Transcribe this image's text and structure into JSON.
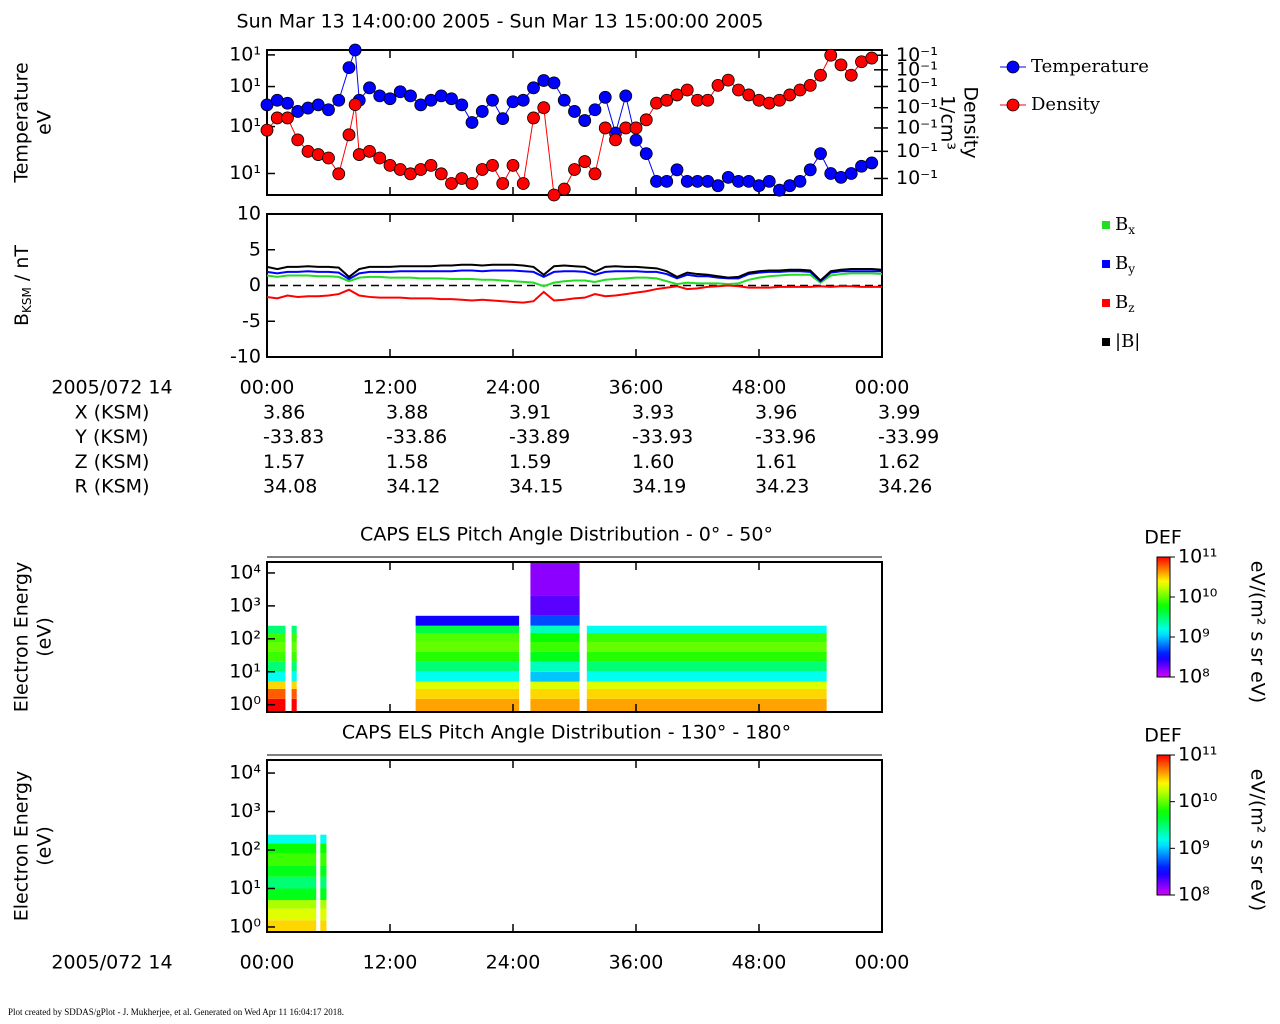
{
  "title": "Sun Mar 13 14:00:00 2005 - Sun Mar 13 15:00:00 2005",
  "footer": "Plot created by SDDAS/gPlot - J. Mukherjee, et al.  Generated on Wed Apr 11 16:04:17 2018.",
  "ephemeris": {
    "label": "2005/072 14",
    "rows": [
      {
        "name": "X (KSM)",
        "values": [
          "3.86",
          "3.88",
          "3.91",
          "3.93",
          "3.96",
          "3.99"
        ]
      },
      {
        "name": "Y (KSM)",
        "values": [
          "-33.83",
          "-33.86",
          "-33.89",
          "-33.93",
          "-33.96",
          "-33.99"
        ]
      },
      {
        "name": "Z (KSM)",
        "values": [
          "1.57",
          "1.58",
          "1.59",
          "1.60",
          "1.61",
          "1.62"
        ]
      },
      {
        "name": "R (KSM)",
        "values": [
          "34.08",
          "34.12",
          "34.15",
          "34.19",
          "34.23",
          "34.26"
        ]
      }
    ]
  },
  "chart_data": [
    {
      "type": "line",
      "markers": true,
      "legend": "right",
      "ylabel": [
        "Temperature",
        "eV"
      ],
      "y2label": [
        "Density",
        "1/cm³"
      ],
      "yscale": "log",
      "y2scale": "log",
      "xlim": [
        0,
        60
      ],
      "xticks": [
        0,
        12,
        24,
        36,
        48,
        60
      ],
      "ylim": [
        16,
        100
      ],
      "yticks": [
        {
          "value": 94,
          "label": "10¹"
        },
        {
          "value": 63,
          "label": "10¹"
        },
        {
          "value": 38,
          "label": "10¹"
        },
        {
          "value": 21,
          "label": "10¹"
        }
      ],
      "y2lim": [
        0.1,
        1
      ],
      "y2ticks": [
        {
          "value": 0.92,
          "label": "10⁻¹"
        },
        {
          "value": 0.73,
          "label": "10⁻¹"
        },
        {
          "value": 0.56,
          "label": "10⁻¹"
        },
        {
          "value": 0.4,
          "label": "10⁻¹"
        },
        {
          "value": 0.29,
          "label": "10⁻¹"
        },
        {
          "value": 0.2,
          "label": "10⁻¹"
        },
        {
          "value": 0.13,
          "label": "10⁻¹"
        }
      ],
      "x": [
        0,
        1,
        2,
        3,
        4,
        5,
        6,
        7,
        8,
        8.6,
        9,
        10,
        11,
        12,
        13,
        14,
        15,
        16,
        17,
        18,
        19,
        20,
        21,
        22,
        23,
        24,
        25,
        26,
        27,
        28,
        29,
        30,
        31,
        32,
        33,
        34,
        35,
        36,
        37,
        38,
        39,
        40,
        41,
        42,
        43,
        44,
        45,
        46,
        47,
        48,
        49,
        50,
        51,
        52,
        53,
        54,
        55,
        56,
        57,
        58,
        59
      ],
      "series": [
        {
          "name": "Temperature",
          "color": "#0000ff",
          "values": [
            50,
            53,
            51,
            46,
            48,
            50,
            47,
            53,
            80,
            100,
            53,
            62,
            56,
            54,
            59,
            56,
            50,
            53,
            56,
            54,
            50,
            40,
            46,
            53,
            42,
            52,
            53,
            62,
            68,
            66,
            53,
            46,
            41,
            47,
            55,
            35,
            56,
            32,
            27,
            19,
            19,
            22,
            19,
            19,
            19,
            18,
            20,
            19,
            19,
            18,
            19,
            17,
            18,
            19,
            22,
            27,
            21,
            20,
            21,
            23,
            24
          ]
        },
        {
          "name": "Density",
          "color": "#ff0000",
          "axis": "y2",
          "values": [
            0.28,
            0.34,
            0.34,
            0.24,
            0.2,
            0.19,
            0.18,
            0.14,
            0.26,
            0.42,
            0.19,
            0.2,
            0.18,
            0.16,
            0.15,
            0.14,
            0.15,
            0.16,
            0.14,
            0.12,
            0.13,
            0.12,
            0.15,
            0.16,
            0.12,
            0.16,
            0.12,
            0.34,
            0.4,
            0.1,
            0.11,
            0.15,
            0.17,
            0.14,
            0.29,
            0.24,
            0.29,
            0.29,
            0.33,
            0.43,
            0.45,
            0.49,
            0.53,
            0.45,
            0.45,
            0.57,
            0.62,
            0.53,
            0.49,
            0.45,
            0.43,
            0.45,
            0.49,
            0.53,
            0.57,
            0.67,
            0.92,
            0.79,
            0.67,
            0.83,
            0.88
          ]
        }
      ]
    },
    {
      "type": "line",
      "markers": false,
      "legend": "right",
      "zero_line": "dashed",
      "ylabel": {
        "base": "B",
        "sub": "KSM",
        "rest": " / nT"
      },
      "xlim": [
        0,
        60
      ],
      "xticks": [
        {
          "value": 0,
          "label": "00:00"
        },
        {
          "value": 12,
          "label": "12:00"
        },
        {
          "value": 24,
          "label": "24:00"
        },
        {
          "value": 36,
          "label": "36:00"
        },
        {
          "value": 48,
          "label": "48:00"
        },
        {
          "value": 60,
          "label": "00:00"
        }
      ],
      "ylim": [
        -10,
        10
      ],
      "yticks": [
        10,
        5,
        0,
        -5,
        -10
      ],
      "x": [
        0,
        1,
        2,
        3,
        4,
        5,
        6,
        7,
        8,
        9,
        10,
        11,
        12,
        13,
        14,
        15,
        16,
        17,
        18,
        19,
        20,
        21,
        22,
        23,
        24,
        25,
        26,
        27,
        28,
        29,
        30,
        31,
        32,
        33,
        34,
        35,
        36,
        37,
        38,
        39,
        40,
        41,
        42,
        43,
        44,
        45,
        46,
        47,
        48,
        49,
        50,
        51,
        52,
        53,
        54,
        55,
        56,
        57,
        58,
        59,
        60
      ],
      "series": [
        {
          "name": "B",
          "sub": "x",
          "color": "#22dd22",
          "values": [
            1.4,
            1.2,
            1.4,
            1.4,
            1.4,
            1.3,
            1.3,
            1.2,
            0.6,
            1.1,
            1.2,
            1.2,
            1.1,
            1.1,
            1.1,
            1.0,
            1.0,
            1.0,
            0.9,
            0.9,
            0.9,
            0.8,
            0.8,
            0.7,
            0.6,
            0.5,
            0.4,
            -0.1,
            0.4,
            0.6,
            0.7,
            0.7,
            0.5,
            0.8,
            0.9,
            1.0,
            1.1,
            1.1,
            1.0,
            0.6,
            0.2,
            0.4,
            0.3,
            0.3,
            0.3,
            0.2,
            0.3,
            0.8,
            1.1,
            1.3,
            1.4,
            1.5,
            1.5,
            1.5,
            0.4,
            1.4,
            1.6,
            1.7,
            1.7,
            1.7,
            1.6
          ]
        },
        {
          "name": "B",
          "sub": "y",
          "color": "#0000ff",
          "values": [
            1.9,
            1.7,
            1.9,
            1.9,
            2.0,
            1.9,
            1.9,
            1.8,
            0.9,
            1.7,
            1.9,
            1.9,
            1.9,
            2.0,
            2.0,
            2.0,
            2.0,
            2.0,
            2.0,
            2.1,
            2.1,
            2.0,
            2.1,
            2.1,
            2.1,
            2.0,
            1.9,
            1.2,
            1.9,
            2.0,
            2.0,
            1.9,
            1.5,
            1.9,
            2.0,
            2.0,
            2.0,
            1.9,
            1.9,
            1.6,
            1.0,
            1.5,
            1.3,
            1.3,
            1.1,
            1.0,
            1.0,
            1.6,
            1.8,
            1.9,
            1.9,
            2.0,
            2.0,
            1.9,
            0.6,
            1.8,
            2.0,
            2.0,
            2.0,
            2.0,
            2.0
          ]
        },
        {
          "name": "B",
          "sub": "z",
          "color": "#ff0000",
          "values": [
            -1.6,
            -1.8,
            -1.4,
            -1.6,
            -1.5,
            -1.5,
            -1.4,
            -1.2,
            -0.6,
            -1.4,
            -1.6,
            -1.7,
            -1.7,
            -1.7,
            -1.8,
            -1.8,
            -1.8,
            -1.9,
            -1.9,
            -2.0,
            -2.1,
            -2.0,
            -2.1,
            -2.2,
            -2.3,
            -2.4,
            -2.2,
            -0.9,
            -2.1,
            -2.0,
            -1.8,
            -1.7,
            -1.2,
            -1.5,
            -1.4,
            -1.2,
            -1.0,
            -0.8,
            -0.5,
            -0.3,
            -0.1,
            -0.5,
            -0.4,
            -0.2,
            -0.1,
            0.0,
            -0.1,
            -0.3,
            -0.3,
            -0.3,
            -0.2,
            -0.2,
            -0.2,
            -0.2,
            -0.1,
            -0.2,
            -0.1,
            -0.1,
            -0.2,
            -0.2,
            -0.2
          ]
        },
        {
          "name": "|B|",
          "color": "#000000",
          "values": [
            2.6,
            2.3,
            2.6,
            2.6,
            2.7,
            2.6,
            2.6,
            2.5,
            1.2,
            2.3,
            2.6,
            2.6,
            2.6,
            2.7,
            2.7,
            2.7,
            2.7,
            2.8,
            2.8,
            2.9,
            2.9,
            2.8,
            2.9,
            2.9,
            2.9,
            2.8,
            2.6,
            1.5,
            2.7,
            2.8,
            2.7,
            2.6,
            1.9,
            2.6,
            2.7,
            2.6,
            2.6,
            2.5,
            2.4,
            2.0,
            1.2,
            1.8,
            1.6,
            1.5,
            1.3,
            1.1,
            1.2,
            1.8,
            2.0,
            2.1,
            2.1,
            2.2,
            2.2,
            2.1,
            0.7,
            2.0,
            2.2,
            2.3,
            2.3,
            2.3,
            2.2
          ]
        }
      ]
    },
    {
      "type": "heatmap",
      "title": "CAPS ELS Pitch Angle Distribution - 0° - 50°",
      "ylabel": [
        "Electron Energy",
        "(eV)"
      ],
      "yscale": "log",
      "xlim": [
        0,
        60
      ],
      "xticks": [
        0,
        12,
        24,
        36,
        48,
        60
      ],
      "ylim": [
        0.6,
        21500
      ],
      "yticks": [
        {
          "value": 1,
          "label": "10⁰"
        },
        {
          "value": 10,
          "label": "10¹"
        },
        {
          "value": 100,
          "label": "10²"
        },
        {
          "value": 1000,
          "label": "10³"
        },
        {
          "value": 10000,
          "label": "10⁴"
        }
      ],
      "x_edges": [
        0,
        1.8,
        2.4,
        2.9,
        14.5,
        24.6,
        25.7,
        30.5,
        31.2,
        54.6,
        60
      ],
      "y_edges": [
        0.6,
        1.5,
        3,
        5,
        10,
        20,
        40,
        80,
        150,
        250,
        500,
        2000,
        21500
      ],
      "z": [
        [
          100000000000.0,
          null,
          100000000000.0,
          null,
          40000000000.0,
          null,
          40000000000.0,
          null,
          40000000000.0,
          null
        ],
        [
          60000000000.0,
          null,
          60000000000.0,
          null,
          30000000000.0,
          null,
          30000000000.0,
          null,
          30000000000.0,
          null
        ],
        [
          30000000000.0,
          null,
          30000000000.0,
          null,
          20000000000.0,
          null,
          20000000000.0,
          null,
          20000000000.0,
          null
        ],
        [
          1500000000.0,
          null,
          1500000000.0,
          null,
          1500000000.0,
          null,
          1000000000.0,
          null,
          1500000000.0,
          null
        ],
        [
          3000000000.0,
          null,
          3000000000.0,
          null,
          3000000000.0,
          null,
          2000000000.0,
          null,
          3000000000.0,
          null
        ],
        [
          8000000000.0,
          null,
          8000000000.0,
          null,
          7000000000.0,
          null,
          5000000000.0,
          null,
          7000000000.0,
          null
        ],
        [
          10000000000.0,
          null,
          10000000000.0,
          null,
          10000000000.0,
          null,
          8000000000.0,
          null,
          10000000000.0,
          null
        ],
        [
          8000000000.0,
          null,
          8000000000.0,
          null,
          9000000000.0,
          null,
          6000000000.0,
          null,
          8000000000.0,
          null
        ],
        [
          3000000000.0,
          null,
          3000000000.0,
          null,
          4000000000.0,
          null,
          2000000000.0,
          null,
          1500000000.0,
          null
        ],
        [
          null,
          null,
          null,
          null,
          300000000.0,
          null,
          500000000.0,
          null,
          null,
          null
        ],
        [
          null,
          null,
          null,
          null,
          null,
          null,
          200000000.0,
          null,
          null,
          null
        ],
        [
          null,
          null,
          null,
          null,
          null,
          null,
          150000000.0,
          null,
          null,
          null
        ]
      ],
      "colorbar": {
        "label": "DEF",
        "unit": "eV/(m² s sr eV)",
        "clim": [
          100000000.0,
          100000000000.0
        ],
        "ticks": [
          {
            "value": 100000000.0,
            "label": "10⁸"
          },
          {
            "value": 1000000000.0,
            "label": "10⁹"
          },
          {
            "value": 10000000000.0,
            "label": "10¹⁰"
          },
          {
            "value": 100000000000.0,
            "label": "10¹¹"
          }
        ]
      }
    },
    {
      "type": "heatmap",
      "title": "CAPS ELS Pitch Angle Distribution - 130° - 180°",
      "ylabel": [
        "Electron Energy",
        "(eV)"
      ],
      "yscale": "log",
      "xlabel": "2005/072 14",
      "xlim": [
        0,
        60
      ],
      "xticks": [
        {
          "value": 0,
          "label": "00:00"
        },
        {
          "value": 12,
          "label": "12:00"
        },
        {
          "value": 24,
          "label": "24:00"
        },
        {
          "value": 36,
          "label": "36:00"
        },
        {
          "value": 48,
          "label": "48:00"
        },
        {
          "value": 60,
          "label": "00:00"
        }
      ],
      "ylim": [
        0.74,
        21800
      ],
      "yticks": [
        {
          "value": 1,
          "label": "10⁰"
        },
        {
          "value": 10,
          "label": "10¹"
        },
        {
          "value": 100,
          "label": "10²"
        },
        {
          "value": 1000,
          "label": "10³"
        },
        {
          "value": 10000,
          "label": "10⁴"
        }
      ],
      "x_edges": [
        0,
        4.8,
        5.2,
        5.8,
        60
      ],
      "y_edges": [
        0.74,
        1.5,
        3,
        5,
        10,
        20,
        40,
        80,
        150,
        250
      ],
      "z": [
        [
          30000000000.0,
          null,
          30000000000.0,
          null
        ],
        [
          20000000000.0,
          null,
          20000000000.0,
          null
        ],
        [
          15000000000.0,
          null,
          15000000000.0,
          null
        ],
        [
          5000000000.0,
          null,
          5000000000.0,
          null
        ],
        [
          3000000000.0,
          null,
          3000000000.0,
          null
        ],
        [
          5000000000.0,
          null,
          5000000000.0,
          null
        ],
        [
          8000000000.0,
          null,
          8000000000.0,
          null
        ],
        [
          6000000000.0,
          null,
          6000000000.0,
          null
        ],
        [
          1500000000.0,
          null,
          1500000000.0,
          null
        ]
      ],
      "colorbar": {
        "label": "DEF",
        "unit": "eV/(m² s sr eV)",
        "clim": [
          100000000.0,
          100000000000.0
        ],
        "ticks": [
          {
            "value": 100000000.0,
            "label": "10⁸"
          },
          {
            "value": 1000000000.0,
            "label": "10⁹"
          },
          {
            "value": 10000000000.0,
            "label": "10¹⁰"
          },
          {
            "value": 100000000000.0,
            "label": "10¹¹"
          }
        ]
      }
    }
  ]
}
